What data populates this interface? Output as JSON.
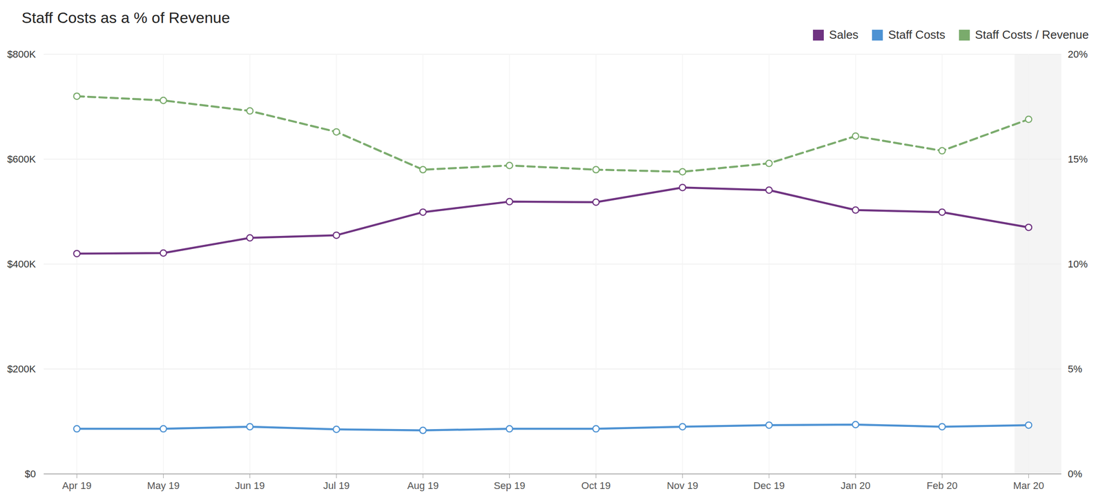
{
  "chart_data": {
    "type": "line",
    "title": "Staff Costs as a % of Revenue",
    "categories": [
      "Apr 19",
      "May 19",
      "Jun 19",
      "Jul 19",
      "Aug 19",
      "Sep 19",
      "Oct 19",
      "Nov 19",
      "Dec 19",
      "Jan 20",
      "Feb 20",
      "Mar 20"
    ],
    "series": [
      {
        "name": "Sales",
        "color": "#6f3381",
        "marker": "circle",
        "line_style": "solid",
        "values": [
          420000,
          421000,
          450000,
          455000,
          499000,
          519000,
          518000,
          546000,
          541000,
          503000,
          499000,
          470000
        ]
      },
      {
        "name": "Staff Costs",
        "color": "#4d92d3",
        "marker": "circle",
        "line_style": "solid",
        "values": [
          86000,
          86000,
          90000,
          85000,
          83000,
          86000,
          86000,
          90000,
          93000,
          94000,
          90000,
          93000
        ]
      },
      {
        "name": "Staff Costs / Revenue",
        "color": "#7aab6c",
        "marker": "circle",
        "line_style": "dashed",
        "axis": "y2",
        "values": [
          18.0,
          17.8,
          17.3,
          16.3,
          14.5,
          14.7,
          14.5,
          14.4,
          14.8,
          16.1,
          15.4,
          16.9
        ]
      }
    ],
    "ylim": [
      0,
      800000
    ],
    "yticks": [
      {
        "value": 0,
        "label": "$0"
      },
      {
        "value": 200000,
        "label": "$200K"
      },
      {
        "value": 400000,
        "label": "$400K"
      },
      {
        "value": 600000,
        "label": "$600K"
      },
      {
        "value": 800000,
        "label": "$800K"
      }
    ],
    "y2lim": [
      0,
      20
    ],
    "y2ticks": [
      {
        "value": 0,
        "label": "0%"
      },
      {
        "value": 5,
        "label": "5%"
      },
      {
        "value": 10,
        "label": "10%"
      },
      {
        "value": 15,
        "label": "15%"
      },
      {
        "value": 20,
        "label": "20%"
      }
    ],
    "grid": true,
    "legend": "top-right"
  }
}
